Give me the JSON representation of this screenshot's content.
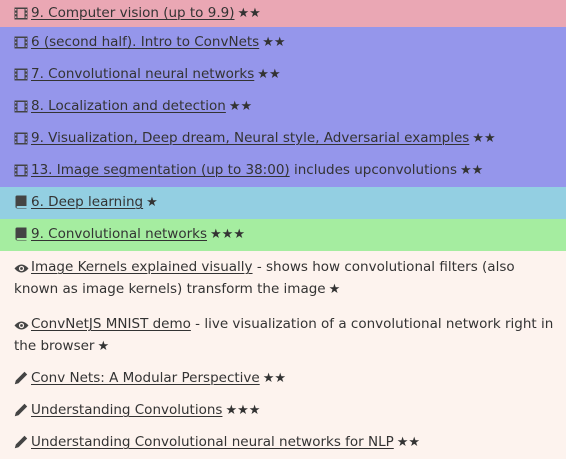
{
  "rows": [
    {
      "icon": "film-icon",
      "link": "9. Computer vision (up to 9.9)",
      "suffix": "",
      "stars": "★★",
      "color": "#eaa7b4"
    },
    {
      "icon": "film-icon",
      "link": "6 (second half). Intro to ConvNets",
      "suffix": "",
      "stars": "★★",
      "color": "#9596eb"
    },
    {
      "icon": "film-icon",
      "link": "7. Convolutional neural networks",
      "suffix": "",
      "stars": "★★",
      "color": "#9596eb"
    },
    {
      "icon": "film-icon",
      "link": "8. Localization and detection",
      "suffix": "",
      "stars": "★★",
      "color": "#9596eb"
    },
    {
      "icon": "film-icon",
      "link": "9. Visualization, Deep dream, Neural style, Adversarial examples",
      "suffix": "",
      "stars": "★★",
      "color": "#9596eb"
    },
    {
      "icon": "film-icon",
      "link": "13. Image segmentation (up to 38:00)",
      "suffix": " includes upconvolutions",
      "stars": "★★",
      "color": "#9596eb"
    },
    {
      "icon": "book-icon",
      "link": "6. Deep learning",
      "suffix": "",
      "stars": "★",
      "color": "#93cfe2"
    },
    {
      "icon": "book-icon",
      "link": "9. Convolutional networks",
      "suffix": "",
      "stars": "★★★",
      "color": "#a5eda0"
    },
    {
      "icon": "eye-icon",
      "link": "Image Kernels explained visually",
      "suffix": " - shows how convolutional filters (also known as image kernels) transform the image",
      "stars": "★",
      "color": "#fdf3ee"
    },
    {
      "icon": "eye-icon",
      "link": "ConvNetJS MNIST demo",
      "suffix": " - live visualization of a convolutional network right in the browser",
      "stars": "★",
      "color": "#fdf3ee"
    },
    {
      "icon": "pencil-icon",
      "link": "Conv Nets: A Modular Perspective",
      "suffix": "",
      "stars": "★★",
      "color": "#fdf3ee"
    },
    {
      "icon": "pencil-icon",
      "link": "Understanding Convolutions",
      "suffix": "",
      "stars": "★★★",
      "color": "#fdf3ee"
    },
    {
      "icon": "pencil-icon",
      "link": "Understanding Convolutional neural networks for NLP",
      "suffix": "",
      "stars": "★★",
      "color": "#fdf3ee"
    }
  ]
}
